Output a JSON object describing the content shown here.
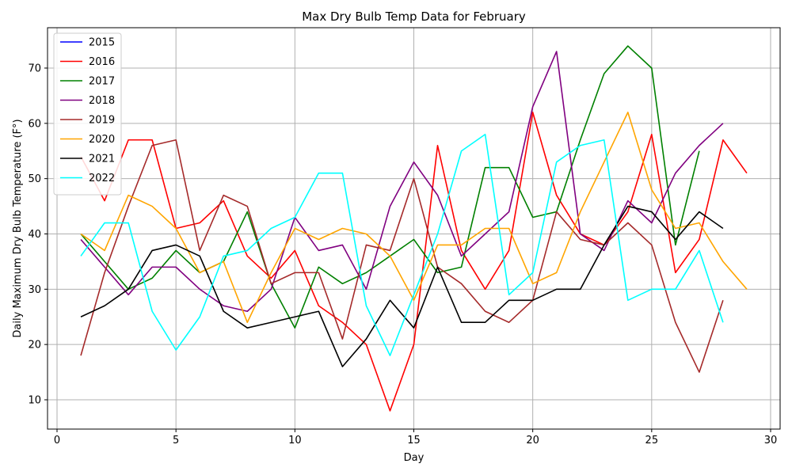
{
  "chart_data": {
    "type": "line",
    "title": "Max Dry Bulb Temp Data for February",
    "xlabel": "Day",
    "ylabel": "Daily Maximum Dry Bulb Temperature (F°)",
    "xlim": [
      -0.4,
      30.4
    ],
    "ylim": [
      4.7,
      77.3
    ],
    "xticks": [
      0,
      5,
      10,
      15,
      20,
      25,
      30
    ],
    "yticks": [
      10,
      20,
      30,
      40,
      50,
      60,
      70
    ],
    "grid": true,
    "legend_position": "upper-left",
    "series": [
      {
        "name": "2015",
        "color": "#0000ff",
        "x": [],
        "values": []
      },
      {
        "name": "2016",
        "color": "#ff0000",
        "x": [
          1,
          2,
          3,
          4,
          5,
          6,
          7,
          8,
          9,
          10,
          11,
          12,
          13,
          14,
          15,
          16,
          17,
          18,
          19,
          20,
          21,
          22,
          23,
          24,
          25,
          26,
          27,
          28,
          29
        ],
        "values": [
          54,
          46,
          57,
          57,
          41,
          42,
          46,
          36,
          32,
          37,
          27,
          24,
          20,
          8,
          20,
          56,
          37,
          30,
          37,
          62,
          47,
          40,
          38,
          44,
          58,
          33,
          39,
          57,
          51
        ]
      },
      {
        "name": "2017",
        "color": "#008000",
        "x": [
          1,
          2,
          3,
          4,
          5,
          6,
          7,
          8,
          9,
          10,
          11,
          12,
          13,
          14,
          15,
          16,
          17,
          18,
          19,
          20,
          21,
          22,
          23,
          24,
          25,
          26,
          27
        ],
        "values": [
          40,
          35,
          30,
          32,
          37,
          33,
          35,
          44,
          31,
          23,
          34,
          31,
          33,
          36,
          39,
          33,
          34,
          52,
          52,
          43,
          44,
          57,
          69,
          74,
          70,
          38,
          55
        ]
      },
      {
        "name": "2018",
        "color": "#800080",
        "x": [
          1,
          2,
          3,
          4,
          5,
          6,
          7,
          8,
          9,
          10,
          11,
          12,
          13,
          14,
          15,
          16,
          17,
          18,
          19,
          20,
          21,
          22,
          23,
          24,
          25,
          26,
          27,
          28
        ],
        "values": [
          39,
          34,
          29,
          34,
          34,
          30,
          27,
          26,
          30,
          43,
          37,
          38,
          30,
          45,
          53,
          47,
          36,
          40,
          44,
          63,
          73,
          40,
          37,
          46,
          42,
          51,
          56,
          60
        ]
      },
      {
        "name": "2019",
        "color": "#a52a2a",
        "x": [
          1,
          2,
          3,
          4,
          5,
          6,
          7,
          8,
          9,
          10,
          11,
          12,
          13,
          14,
          15,
          16,
          17,
          18,
          19,
          20,
          21,
          22,
          23,
          24,
          25,
          26,
          27,
          28
        ],
        "values": [
          18,
          33,
          45,
          56,
          57,
          37,
          47,
          45,
          31,
          33,
          33,
          21,
          38,
          37,
          50,
          34,
          31,
          26,
          24,
          28,
          44,
          39,
          38,
          42,
          38,
          24,
          15,
          28
        ]
      },
      {
        "name": "2020",
        "color": "#ffa500",
        "x": [
          1,
          2,
          3,
          4,
          5,
          6,
          7,
          8,
          9,
          10,
          11,
          12,
          13,
          14,
          15,
          16,
          17,
          18,
          19,
          20,
          21,
          22,
          23,
          24,
          25,
          26,
          27,
          28,
          29
        ],
        "values": [
          40,
          37,
          47,
          45,
          41,
          33,
          35,
          24,
          33,
          41,
          39,
          41,
          40,
          36,
          28,
          38,
          38,
          41,
          41,
          31,
          33,
          44,
          53,
          62,
          48,
          41,
          42,
          35,
          30
        ]
      },
      {
        "name": "2021",
        "color": "#000000",
        "x": [
          1,
          2,
          3,
          4,
          5,
          6,
          7,
          8,
          9,
          10,
          11,
          12,
          13,
          14,
          15,
          16,
          17,
          18,
          19,
          20,
          21,
          22,
          23,
          24,
          25,
          26,
          27,
          28
        ],
        "values": [
          25,
          27,
          30,
          37,
          38,
          36,
          26,
          23,
          24,
          25,
          26,
          16,
          21,
          28,
          23,
          34,
          24,
          24,
          28,
          28,
          30,
          30,
          38,
          45,
          44,
          39,
          44,
          41
        ]
      },
      {
        "name": "2022",
        "color": "#00ffff",
        "x": [
          1,
          2,
          3,
          4,
          5,
          6,
          7,
          8,
          9,
          10,
          11,
          12,
          13,
          14,
          15,
          16,
          17,
          18,
          19,
          20,
          21,
          22,
          23,
          24,
          25,
          26,
          27,
          28
        ],
        "values": [
          36,
          42,
          42,
          26,
          19,
          25,
          36,
          37,
          41,
          43,
          51,
          51,
          27,
          18,
          29,
          40,
          55,
          58,
          29,
          33,
          53,
          56,
          57,
          28,
          30,
          30,
          37,
          24
        ]
      }
    ]
  }
}
